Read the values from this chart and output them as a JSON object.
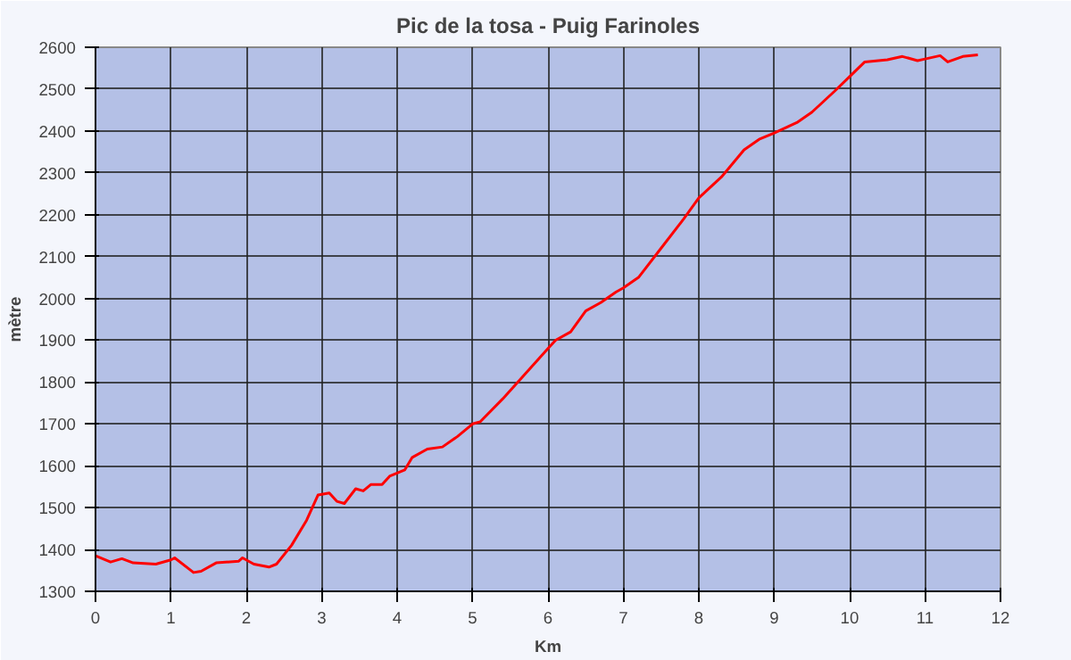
{
  "chart_data": {
    "type": "line",
    "title": "Pic de la tosa - Puig Farinoles",
    "xlabel": "Km",
    "ylabel": "mètre",
    "x": [
      0,
      0.2,
      0.35,
      0.5,
      0.8,
      1.0,
      1.05,
      1.3,
      1.4,
      1.6,
      1.9,
      1.95,
      2.1,
      2.3,
      2.4,
      2.6,
      2.8,
      2.95,
      3.1,
      3.2,
      3.3,
      3.45,
      3.55,
      3.65,
      3.8,
      3.9,
      4.1,
      4.2,
      4.4,
      4.6,
      4.8,
      5.0,
      5.1,
      5.4,
      5.7,
      6.0,
      6.1,
      6.3,
      6.5,
      6.7,
      6.9,
      7.0,
      7.2,
      7.5,
      7.8,
      8.0,
      8.3,
      8.6,
      8.8,
      9.0,
      9.3,
      9.5,
      9.8,
      10.0,
      10.2,
      10.5,
      10.7,
      10.9,
      11.0,
      11.2,
      11.3,
      11.5,
      11.7
    ],
    "series": [
      {
        "color": "#ff0000",
        "values": [
          1385,
          1370,
          1378,
          1368,
          1365,
          1375,
          1380,
          1345,
          1348,
          1368,
          1372,
          1380,
          1365,
          1358,
          1365,
          1410,
          1470,
          1530,
          1535,
          1515,
          1510,
          1545,
          1540,
          1555,
          1555,
          1575,
          1590,
          1620,
          1640,
          1645,
          1670,
          1700,
          1705,
          1760,
          1820,
          1880,
          1900,
          1920,
          1970,
          1990,
          2015,
          2025,
          2050,
          2120,
          2190,
          2240,
          2290,
          2355,
          2380,
          2395,
          2420,
          2445,
          2495,
          2530,
          2565,
          2570,
          2578,
          2568,
          2572,
          2580,
          2565,
          2578,
          2582
        ]
      }
    ],
    "xlim": [
      0,
      12
    ],
    "xticks": [
      0,
      1,
      2,
      3,
      4,
      5,
      6,
      7,
      8,
      9,
      10,
      11,
      12
    ],
    "ylim": [
      1300,
      2600
    ],
    "yticks": [
      1300,
      1400,
      1500,
      1600,
      1700,
      1800,
      1900,
      2000,
      2100,
      2200,
      2300,
      2400,
      2500,
      2600
    ],
    "grid": true,
    "marker": "none",
    "line_style": "solid"
  }
}
